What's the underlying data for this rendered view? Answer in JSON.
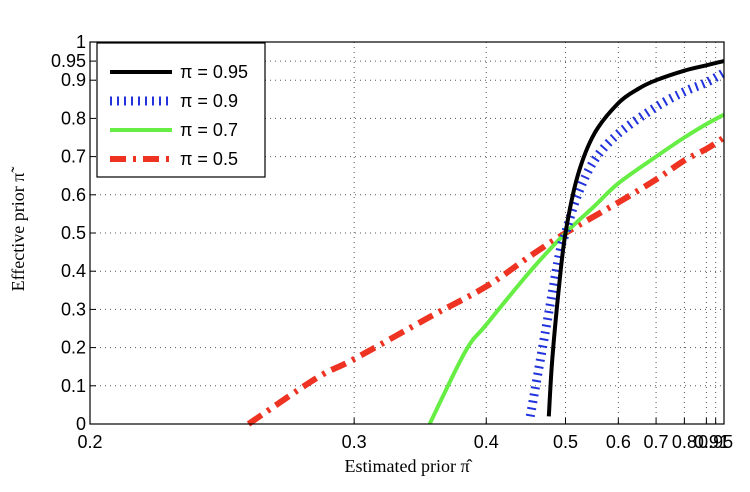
{
  "chart_data": {
    "type": "line",
    "xlabel": "Estimated prior π̂",
    "ylabel": "Effective prior π̃",
    "xlim": [
      0.2,
      1
    ],
    "ylim": [
      0,
      1
    ],
    "x_scale": "reciprocal (logit)",
    "x_ticks": [
      0.2,
      0.3,
      0.4,
      0.5,
      0.6,
      0.7,
      0.8,
      0.9,
      0.95,
      1
    ],
    "x_tick_labels": [
      "0.2",
      "0.3",
      "0.4",
      "0.5",
      "0.6",
      "0.7",
      "0.8",
      "0.9",
      "0.95",
      "1"
    ],
    "y_ticks": [
      0,
      0.1,
      0.2,
      0.3,
      0.4,
      0.5,
      0.6,
      0.7,
      0.8,
      0.9,
      0.95,
      1
    ],
    "y_tick_labels": [
      "0",
      "0.1",
      "0.2",
      "0.3",
      "0.4",
      "0.5",
      "0.6",
      "0.7",
      "0.8",
      "0.9",
      "0.95",
      "1"
    ],
    "grid": true,
    "legend_position": "top-left",
    "series": [
      {
        "name": "π = 0.95",
        "color": "#000000",
        "style": "solid",
        "x": [
          0.475,
          0.48,
          0.49,
          0.5,
          0.52,
          0.55,
          0.6,
          0.65,
          0.7,
          0.8,
          0.9,
          0.95,
          1.0
        ],
        "y": [
          0.02,
          0.17,
          0.36,
          0.5,
          0.65,
          0.76,
          0.84,
          0.878,
          0.9,
          0.925,
          0.939,
          0.945,
          0.95
        ]
      },
      {
        "name": "π = 0.9",
        "color": "#2233dd",
        "style": "dotted",
        "x": [
          0.45,
          0.47,
          0.49,
          0.5,
          0.52,
          0.55,
          0.6,
          0.7,
          0.8,
          0.9,
          1.0
        ],
        "y": [
          0.02,
          0.24,
          0.44,
          0.5,
          0.6,
          0.69,
          0.76,
          0.83,
          0.87,
          0.894,
          0.92
        ]
      },
      {
        "name": "π = 0.7",
        "color": "#66ee44",
        "style": "solid",
        "x": [
          0.35,
          0.38,
          0.4,
          0.45,
          0.5,
          0.55,
          0.6,
          0.7,
          0.8,
          0.9,
          1.0
        ],
        "y": [
          0.0,
          0.19,
          0.26,
          0.4,
          0.5,
          0.57,
          0.63,
          0.7,
          0.75,
          0.785,
          0.81
        ]
      },
      {
        "name": "π = 0.5",
        "color": "#ee3322",
        "style": "dashdot",
        "x": [
          0.25,
          0.28,
          0.3,
          0.35,
          0.4,
          0.45,
          0.5,
          0.6,
          0.7,
          0.8,
          0.9,
          1.0
        ],
        "y": [
          0.0,
          0.12,
          0.17,
          0.28,
          0.36,
          0.44,
          0.5,
          0.58,
          0.64,
          0.69,
          0.72,
          0.75
        ]
      }
    ]
  }
}
